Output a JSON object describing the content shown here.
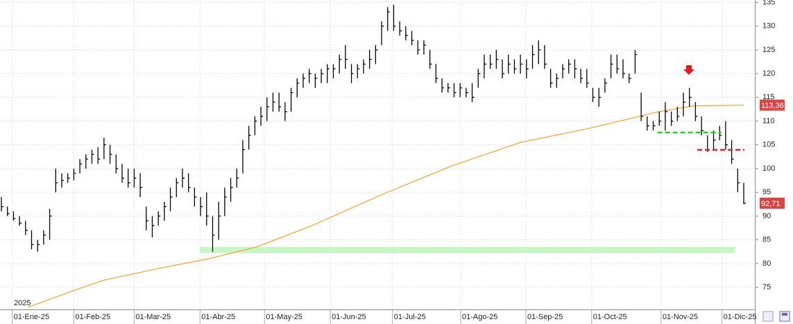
{
  "chart_data": {
    "type": "ohlc",
    "year_label": "2025",
    "xlim": [
      0,
      123
    ],
    "xticks": [
      {
        "value": 1.8,
        "label": "01-Ene-25"
      },
      {
        "value": 12,
        "label": "01-Feb-25"
      },
      {
        "value": 22,
        "label": "01-Mar-25"
      },
      {
        "value": 32.9,
        "label": "01-Abr-25"
      },
      {
        "value": 43.6,
        "label": "01-May-25"
      },
      {
        "value": 54.5,
        "label": "01-Jun-25"
      },
      {
        "value": 64.8,
        "label": "01-Jul-25"
      },
      {
        "value": 76.1,
        "label": "01-Ago-25"
      },
      {
        "value": 86.9,
        "label": "01-Sep-25"
      },
      {
        "value": 97.8,
        "label": "01-Oct-25"
      },
      {
        "value": 109.3,
        "label": "01-Nov-25"
      },
      {
        "value": 119.4,
        "label": "01-Dic-25"
      }
    ],
    "ylim": [
      69.9,
      135.5
    ],
    "yticks": [
      75,
      80,
      85,
      90,
      95,
      100,
      105,
      110,
      115,
      120,
      125,
      130,
      135
    ],
    "grid": true,
    "color": "#000000",
    "high": [
      94,
      92,
      91,
      90,
      89,
      87,
      85,
      87,
      91.5,
      100,
      99,
      99,
      100,
      102,
      103,
      104,
      104.5,
      106.5,
      105,
      103,
      101,
      100,
      100,
      99,
      92,
      90,
      91,
      93,
      96,
      98,
      100,
      99,
      96,
      94,
      95,
      90,
      93,
      96,
      98,
      100,
      106,
      109,
      111,
      113,
      115,
      116,
      116,
      114,
      117,
      119,
      120,
      121,
      120,
      121,
      122,
      122,
      124,
      126,
      122,
      122,
      123,
      125,
      126,
      131,
      134,
      134.5,
      131,
      130,
      129,
      127,
      127,
      125,
      122,
      119,
      118,
      118,
      118,
      117,
      118,
      121,
      124,
      124,
      125,
      123,
      124,
      123,
      124,
      123,
      126,
      127,
      126,
      121,
      120,
      122,
      123,
      123,
      121,
      121,
      117,
      117,
      119,
      124,
      124,
      123,
      120,
      125,
      116,
      111,
      110,
      112,
      114,
      112,
      113,
      116,
      117,
      114,
      111,
      107,
      108,
      109,
      110,
      106,
      100,
      97
    ],
    "low": [
      91,
      90,
      89,
      88,
      86,
      83,
      82.5,
      84,
      85,
      95,
      96,
      97,
      97.5,
      99,
      100,
      101,
      101,
      102,
      101,
      99,
      97,
      96,
      96,
      94,
      87,
      85.5,
      88,
      89,
      91,
      94,
      96,
      95,
      92,
      90,
      88,
      82.5,
      85,
      90,
      93,
      96,
      99,
      104,
      107,
      109,
      110,
      112,
      112,
      110,
      112,
      115,
      117,
      118,
      117,
      118,
      118,
      119,
      120,
      121,
      118,
      119,
      120,
      121,
      122,
      126,
      129,
      129,
      128,
      127,
      126,
      124,
      124,
      121,
      118,
      116,
      116,
      115,
      115,
      115,
      114,
      117,
      119,
      121,
      121,
      119,
      120,
      120,
      120,
      119,
      121,
      122,
      121,
      117,
      117,
      119,
      120,
      119,
      118,
      117,
      114,
      113,
      116,
      119,
      120,
      119,
      118,
      120,
      110,
      108,
      108,
      109,
      108,
      109,
      110,
      111,
      113,
      110,
      107,
      103.5,
      104,
      106,
      104,
      101,
      95,
      92.5
    ],
    "close": [
      92,
      90.5,
      89.5,
      88.5,
      87,
      84,
      84,
      86,
      90,
      97,
      97.5,
      98,
      99,
      101,
      102,
      103,
      102,
      105,
      103,
      100,
      98,
      97,
      98,
      96,
      89,
      88,
      90,
      92,
      94,
      97,
      98,
      96,
      94,
      92,
      90,
      86,
      90,
      94,
      96,
      98,
      104,
      107,
      110,
      111,
      113,
      114,
      113,
      112,
      116,
      118,
      119,
      120,
      119,
      120,
      121,
      121,
      123,
      123,
      120,
      121,
      122,
      123,
      125,
      130,
      133,
      130,
      129,
      128,
      127,
      125,
      126,
      122,
      119,
      117,
      117,
      116,
      117,
      116,
      115,
      120,
      122,
      122,
      123,
      120,
      122,
      121,
      122,
      121,
      124,
      125,
      122,
      118,
      119,
      121,
      122,
      121,
      119,
      118,
      115,
      115,
      118,
      122,
      121,
      120,
      119,
      124,
      111,
      109,
      109,
      110,
      112,
      110,
      111,
      114,
      115,
      111,
      108,
      104,
      106,
      107,
      105,
      102,
      97,
      92.71
    ],
    "moving_average": {
      "color": "#f0a030",
      "x": [
        4.4,
        12.4,
        17,
        26.2,
        34.3,
        42.3,
        51.5,
        63,
        74.5,
        86,
        97.5,
        109,
        114.7,
        123
      ],
      "values": [
        70.8,
        74.5,
        76.5,
        79,
        81,
        83.5,
        88,
        94.5,
        100.5,
        105.5,
        108.5,
        112,
        113.2,
        113.36
      ]
    },
    "last_price": {
      "value": 92.71,
      "label": "92,71"
    },
    "last_average": {
      "value": 113.36,
      "label": "113,36"
    },
    "band": {
      "color": "#c6f5c6",
      "x": [
        32.9,
        121.6
      ],
      "y": [
        82.2,
        83.5
      ]
    },
    "levels": [
      {
        "color": "#22cc22",
        "x": [
          108.7,
          119.3
        ],
        "y": 107.6
      },
      {
        "color": "#dd2222",
        "x": [
          115.3,
          123.1
        ],
        "y": 103.95
      }
    ]
  }
}
